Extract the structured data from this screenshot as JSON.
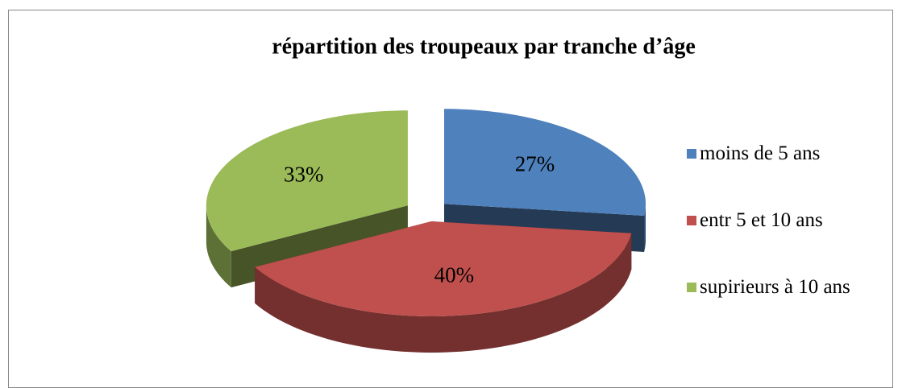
{
  "chart_data": {
    "type": "pie",
    "title": "répartition des troupeaux par tranche d’âge",
    "categories": [
      "moins de 5 ans",
      "entr 5 et 10 ans",
      "supirieurs à 10 ans"
    ],
    "values": [
      27,
      40,
      33
    ],
    "value_labels": [
      "27%",
      "40%",
      "33%"
    ],
    "colors": [
      "#4f81bd",
      "#c0504d",
      "#9bbb59"
    ],
    "legend": "right"
  }
}
